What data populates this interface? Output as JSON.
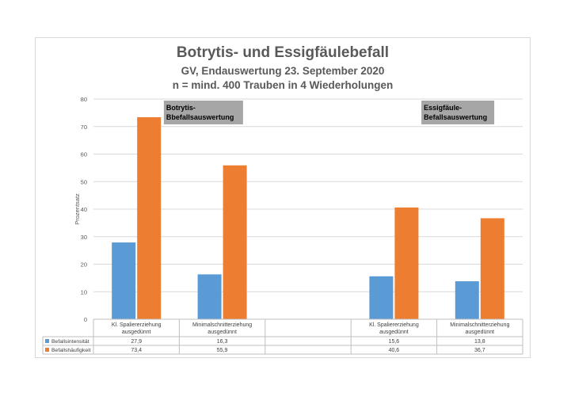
{
  "chart_data": {
    "type": "bar",
    "title": "Botrytis- und Essigfäulebefall",
    "subtitle_lines": [
      "GV, Endauswertung 23. September 2020",
      "n = mind. 400 Trauben in 4 Wiederholungen"
    ],
    "xlabel": "",
    "ylabel": "Prozentsatz",
    "ylim": [
      0,
      80
    ],
    "yticks": [
      0,
      10,
      20,
      30,
      40,
      50,
      60,
      70,
      80
    ],
    "grid": true,
    "categories": [
      [
        "Kl. Spaliererziehung",
        "ausgedünnt"
      ],
      [
        "Minimalschnitterziehung",
        "ausgedünnt"
      ],
      [
        "",
        ""
      ],
      [
        "Kl. Spaliererziehung",
        "ausgedünnt"
      ],
      [
        "Minimalschnitterziehung",
        "ausgedünnt"
      ]
    ],
    "series": [
      {
        "name": "Befallsintensität",
        "color": "#5b9bd5",
        "values": [
          27.9,
          16.3,
          null,
          15.6,
          13.8
        ],
        "labels": [
          "27,9",
          "16,3",
          "",
          "15,6",
          "13,8"
        ]
      },
      {
        "name": "Befallshäufigkeit",
        "color": "#ed7d31",
        "values": [
          73.4,
          55.9,
          null,
          40.6,
          36.7
        ],
        "labels": [
          "73,4",
          "55,9",
          "",
          "40,6",
          "36,7"
        ]
      }
    ],
    "annotations": [
      {
        "lines": [
          "Botrytis-",
          "Bbefallsauswertung"
        ],
        "group": 0
      },
      {
        "lines": [
          "Essigfäule-",
          "Befallsauswertung"
        ],
        "group": 3
      }
    ],
    "legend": "data-table"
  }
}
